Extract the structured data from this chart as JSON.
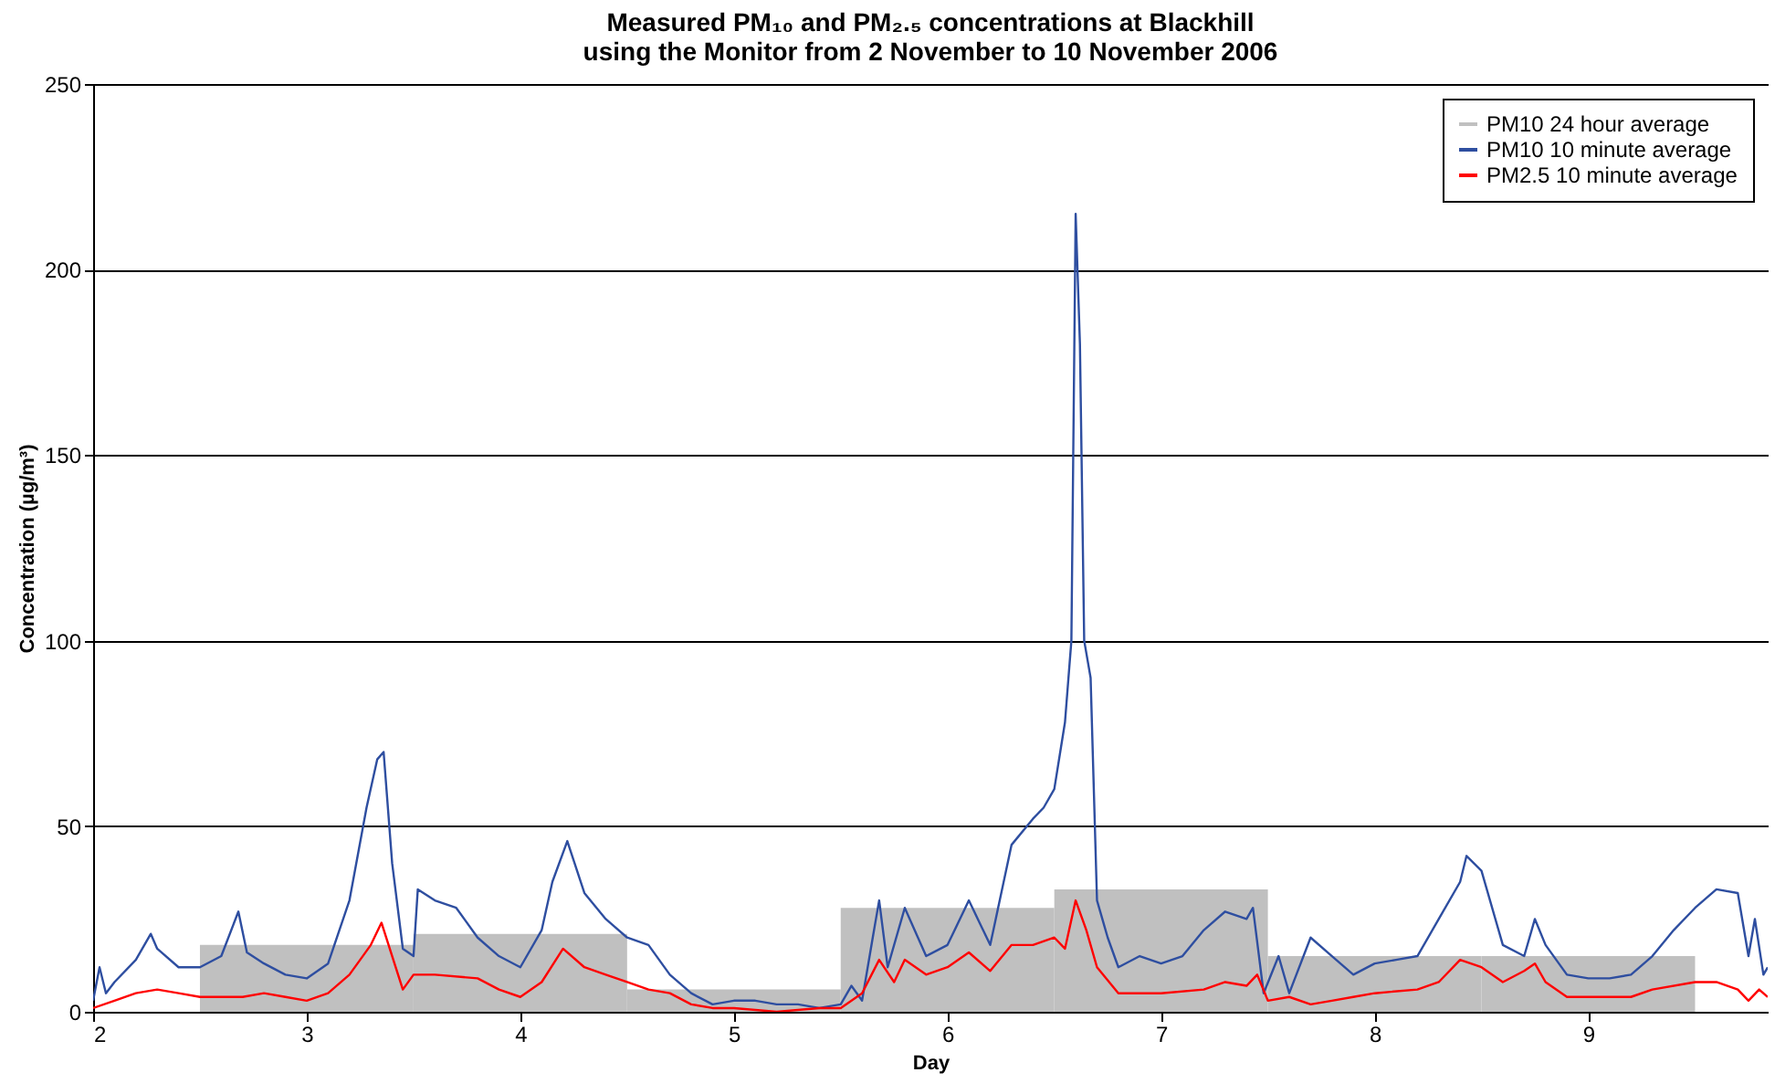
{
  "chart_data": {
    "type": "line",
    "title": "Measured PM₁₀ and PM₂.₅ concentrations at Blackhill using the Monitor from 2 November to 10 November 2006",
    "xlabel": "Day",
    "ylabel": "Concentration (µg/m³)",
    "xlim": [
      2,
      9.84
    ],
    "xticks": [
      2,
      3,
      4,
      5,
      6,
      7,
      8,
      9
    ],
    "ylim": [
      0,
      250
    ],
    "yticks": [
      0,
      50,
      100,
      150,
      200,
      250
    ],
    "grid": "y",
    "legend": "top right",
    "series": [
      {
        "name": "PM10 24 hour average",
        "type": "bar",
        "color": "#c0c0c0",
        "x": [
          3,
          4,
          5,
          6,
          7,
          8,
          9
        ],
        "values": [
          18,
          21,
          6,
          28,
          33,
          15,
          15
        ]
      },
      {
        "name": "PM10 10 minute average",
        "color": "#2e4ea0",
        "x": [
          2.0,
          2.03,
          2.06,
          2.1,
          2.2,
          2.27,
          2.3,
          2.4,
          2.5,
          2.6,
          2.68,
          2.72,
          2.8,
          2.9,
          3.0,
          3.1,
          3.2,
          3.28,
          3.33,
          3.36,
          3.4,
          3.45,
          3.5,
          3.52,
          3.6,
          3.7,
          3.8,
          3.9,
          4.0,
          4.1,
          4.15,
          4.22,
          4.3,
          4.4,
          4.5,
          4.6,
          4.7,
          4.8,
          4.9,
          5.0,
          5.1,
          5.2,
          5.3,
          5.4,
          5.5,
          5.55,
          5.6,
          5.65,
          5.68,
          5.72,
          5.8,
          5.9,
          6.0,
          6.1,
          6.2,
          6.3,
          6.4,
          6.45,
          6.5,
          6.55,
          6.58,
          6.6,
          6.62,
          6.64,
          6.67,
          6.7,
          6.75,
          6.8,
          6.9,
          7.0,
          7.1,
          7.2,
          7.3,
          7.4,
          7.43,
          7.48,
          7.55,
          7.6,
          7.7,
          7.8,
          7.9,
          8.0,
          8.1,
          8.2,
          8.3,
          8.4,
          8.43,
          8.5,
          8.6,
          8.7,
          8.75,
          8.8,
          8.9,
          9.0,
          9.1,
          9.2,
          9.3,
          9.4,
          9.5,
          9.6,
          9.7,
          9.75,
          9.78,
          9.82,
          9.84
        ],
        "values": [
          3,
          12,
          5,
          8,
          14,
          21,
          17,
          12,
          12,
          15,
          27,
          16,
          13,
          10,
          9,
          13,
          30,
          55,
          68,
          70,
          40,
          17,
          15,
          33,
          30,
          28,
          20,
          15,
          12,
          22,
          35,
          46,
          32,
          25,
          20,
          18,
          10,
          5,
          2,
          3,
          3,
          2,
          2,
          1,
          2,
          7,
          3,
          20,
          30,
          12,
          28,
          15,
          18,
          30,
          18,
          45,
          52,
          55,
          60,
          78,
          100,
          215,
          180,
          100,
          90,
          30,
          20,
          12,
          15,
          13,
          15,
          22,
          27,
          25,
          28,
          5,
          15,
          5,
          20,
          15,
          10,
          13,
          14,
          15,
          25,
          35,
          42,
          38,
          18,
          15,
          25,
          18,
          10,
          9,
          9,
          10,
          15,
          22,
          28,
          33,
          32,
          15,
          25,
          10,
          12
        ]
      },
      {
        "name": "PM2.5 10 minute average",
        "color": "#ff0000",
        "x": [
          2.0,
          2.1,
          2.2,
          2.3,
          2.4,
          2.5,
          2.7,
          2.8,
          2.9,
          3.0,
          3.1,
          3.2,
          3.3,
          3.35,
          3.4,
          3.45,
          3.5,
          3.6,
          3.8,
          3.9,
          4.0,
          4.1,
          4.2,
          4.3,
          4.4,
          4.5,
          4.6,
          4.7,
          4.8,
          4.9,
          5.0,
          5.2,
          5.4,
          5.5,
          5.6,
          5.68,
          5.75,
          5.8,
          5.9,
          6.0,
          6.1,
          6.2,
          6.3,
          6.4,
          6.5,
          6.55,
          6.6,
          6.65,
          6.7,
          6.8,
          6.9,
          7.0,
          7.2,
          7.3,
          7.4,
          7.45,
          7.5,
          7.6,
          7.7,
          7.8,
          7.9,
          8.0,
          8.2,
          8.3,
          8.4,
          8.5,
          8.6,
          8.7,
          8.75,
          8.8,
          8.9,
          9.0,
          9.2,
          9.3,
          9.5,
          9.6,
          9.7,
          9.75,
          9.8,
          9.84
        ],
        "values": [
          1,
          3,
          5,
          6,
          5,
          4,
          4,
          5,
          4,
          3,
          5,
          10,
          18,
          24,
          15,
          6,
          10,
          10,
          9,
          6,
          4,
          8,
          17,
          12,
          10,
          8,
          6,
          5,
          2,
          1,
          1,
          0,
          1,
          1,
          5,
          14,
          8,
          14,
          10,
          12,
          16,
          11,
          18,
          18,
          20,
          17,
          30,
          22,
          12,
          5,
          5,
          5,
          6,
          8,
          7,
          10,
          3,
          4,
          2,
          3,
          4,
          5,
          6,
          8,
          14,
          12,
          8,
          11,
          13,
          8,
          4,
          4,
          4,
          6,
          8,
          8,
          6,
          3,
          6,
          4
        ]
      }
    ]
  }
}
